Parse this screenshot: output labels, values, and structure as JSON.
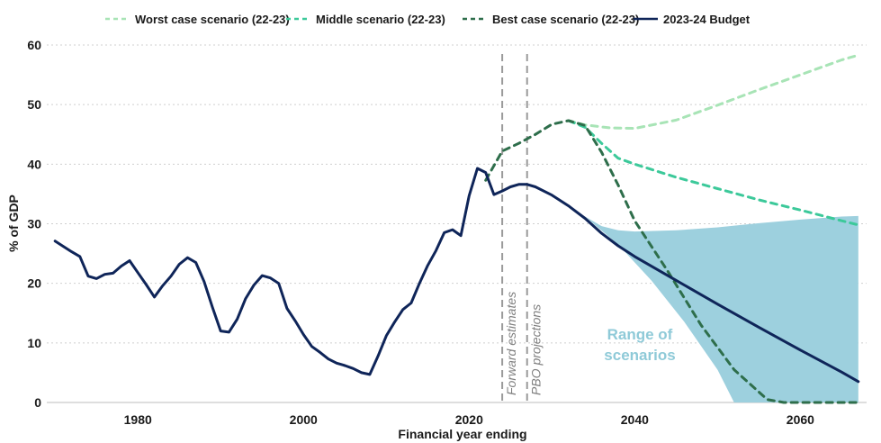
{
  "chart_data": {
    "type": "line",
    "title": "",
    "xlabel": "Financial year ending",
    "ylabel": "% of GDP",
    "xlim": [
      1969,
      2068
    ],
    "ylim": [
      0,
      60
    ],
    "x_ticks": [
      1980,
      2000,
      2020,
      2040,
      2060
    ],
    "y_ticks": [
      0,
      10,
      20,
      30,
      40,
      50,
      60
    ],
    "grid": "horizontal-dotted",
    "legend_position": "top",
    "legend": [
      {
        "label": "Worst case scenario (22-23)",
        "color": "#a8e4b6",
        "style": "dashed"
      },
      {
        "label": "Middle scenario (22-23)",
        "color": "#3cc99a",
        "style": "dashed"
      },
      {
        "label": "Best case scenario (22-23)",
        "color": "#2e6e4b",
        "style": "dashed"
      },
      {
        "label": "2023-24 Budget",
        "color": "#0f2559",
        "style": "solid"
      }
    ],
    "vertical_markers": [
      {
        "x": 2024,
        "label": "Forward estimates"
      },
      {
        "x": 2027,
        "label": "PBO projections"
      }
    ],
    "range_area": {
      "label_line1": "Range of",
      "label_line2": "scenarios",
      "color": "#9dd0de",
      "upper": [
        [
          2034,
          31.2
        ],
        [
          2036,
          29.6
        ],
        [
          2038,
          28.9
        ],
        [
          2040,
          28.7
        ],
        [
          2045,
          28.9
        ],
        [
          2050,
          29.4
        ],
        [
          2055,
          30.1
        ],
        [
          2060,
          30.7
        ],
        [
          2065,
          31.2
        ],
        [
          2067,
          31.3
        ]
      ],
      "lower": [
        [
          2034,
          31.2
        ],
        [
          2038,
          26.5
        ],
        [
          2042,
          20.5
        ],
        [
          2046,
          13.5
        ],
        [
          2050,
          5.5
        ],
        [
          2052,
          0
        ],
        [
          2067,
          0
        ]
      ]
    },
    "series": [
      {
        "name": "2023-24 Budget",
        "color": "#0f2559",
        "style": "solid",
        "points": [
          [
            1970,
            27.1
          ],
          [
            1972,
            25.3
          ],
          [
            1973,
            24.5
          ],
          [
            1974,
            21.2
          ],
          [
            1975,
            20.8
          ],
          [
            1976,
            21.5
          ],
          [
            1977,
            21.7
          ],
          [
            1978,
            22.9
          ],
          [
            1979,
            23.8
          ],
          [
            1980,
            21.8
          ],
          [
            1981,
            19.8
          ],
          [
            1982,
            17.7
          ],
          [
            1983,
            19.6
          ],
          [
            1984,
            21.2
          ],
          [
            1985,
            23.2
          ],
          [
            1986,
            24.3
          ],
          [
            1987,
            23.5
          ],
          [
            1988,
            20.3
          ],
          [
            1989,
            16.0
          ],
          [
            1990,
            12.0
          ],
          [
            1991,
            11.8
          ],
          [
            1992,
            14.0
          ],
          [
            1993,
            17.4
          ],
          [
            1994,
            19.7
          ],
          [
            1995,
            21.3
          ],
          [
            1996,
            20.9
          ],
          [
            1997,
            20.0
          ],
          [
            1998,
            15.8
          ],
          [
            1999,
            13.7
          ],
          [
            2000,
            11.4
          ],
          [
            2001,
            9.4
          ],
          [
            2002,
            8.4
          ],
          [
            2003,
            7.3
          ],
          [
            2004,
            6.6
          ],
          [
            2005,
            6.2
          ],
          [
            2006,
            5.7
          ],
          [
            2007,
            5.0
          ],
          [
            2008,
            4.7
          ],
          [
            2009,
            7.8
          ],
          [
            2010,
            11.2
          ],
          [
            2011,
            13.5
          ],
          [
            2012,
            15.6
          ],
          [
            2013,
            16.7
          ],
          [
            2014,
            20.0
          ],
          [
            2015,
            23.0
          ],
          [
            2016,
            25.5
          ],
          [
            2017,
            28.5
          ],
          [
            2018,
            29.0
          ],
          [
            2019,
            28.0
          ],
          [
            2020,
            34.7
          ],
          [
            2021,
            39.3
          ],
          [
            2022,
            38.6
          ],
          [
            2023,
            34.9
          ],
          [
            2024,
            35.5
          ],
          [
            2025,
            36.2
          ],
          [
            2026,
            36.6
          ],
          [
            2027,
            36.6
          ],
          [
            2028,
            36.2
          ],
          [
            2030,
            34.8
          ],
          [
            2032,
            33.0
          ],
          [
            2034,
            30.9
          ],
          [
            2036,
            28.4
          ],
          [
            2038,
            26.3
          ],
          [
            2040,
            24.5
          ],
          [
            2045,
            20.5
          ],
          [
            2050,
            16.5
          ],
          [
            2055,
            12.6
          ],
          [
            2060,
            8.8
          ],
          [
            2065,
            5.1
          ],
          [
            2067,
            3.5
          ]
        ]
      },
      {
        "name": "Best case scenario (22-23)",
        "color": "#2e6e4b",
        "style": "dashed",
        "points": [
          [
            2022,
            37.3
          ],
          [
            2024,
            42.2
          ],
          [
            2026,
            43.5
          ],
          [
            2028,
            45.0
          ],
          [
            2030,
            46.7
          ],
          [
            2032,
            47.3
          ],
          [
            2034,
            46.5
          ],
          [
            2036,
            42.0
          ],
          [
            2038,
            36.5
          ],
          [
            2040,
            30.5
          ],
          [
            2044,
            22.0
          ],
          [
            2048,
            13.0
          ],
          [
            2052,
            5.5
          ],
          [
            2056,
            0.5
          ],
          [
            2058,
            0
          ],
          [
            2067,
            0
          ]
        ]
      },
      {
        "name": "Middle scenario (22-23)",
        "color": "#3cc99a",
        "style": "dashed",
        "points": [
          [
            2032,
            47.3
          ],
          [
            2034,
            46.2
          ],
          [
            2036,
            43.5
          ],
          [
            2038,
            41.0
          ],
          [
            2040,
            40.0
          ],
          [
            2045,
            37.8
          ],
          [
            2050,
            35.9
          ],
          [
            2055,
            34.0
          ],
          [
            2060,
            32.3
          ],
          [
            2065,
            30.5
          ],
          [
            2067,
            29.8
          ]
        ]
      },
      {
        "name": "Worst case scenario (22-23)",
        "color": "#a8e4b6",
        "style": "dashed",
        "points": [
          [
            2032,
            47.3
          ],
          [
            2034,
            46.6
          ],
          [
            2037,
            46.1
          ],
          [
            2040,
            46.0
          ],
          [
            2045,
            47.4
          ],
          [
            2050,
            49.9
          ],
          [
            2055,
            52.5
          ],
          [
            2060,
            55.0
          ],
          [
            2065,
            57.5
          ],
          [
            2067,
            58.3
          ]
        ]
      }
    ]
  }
}
